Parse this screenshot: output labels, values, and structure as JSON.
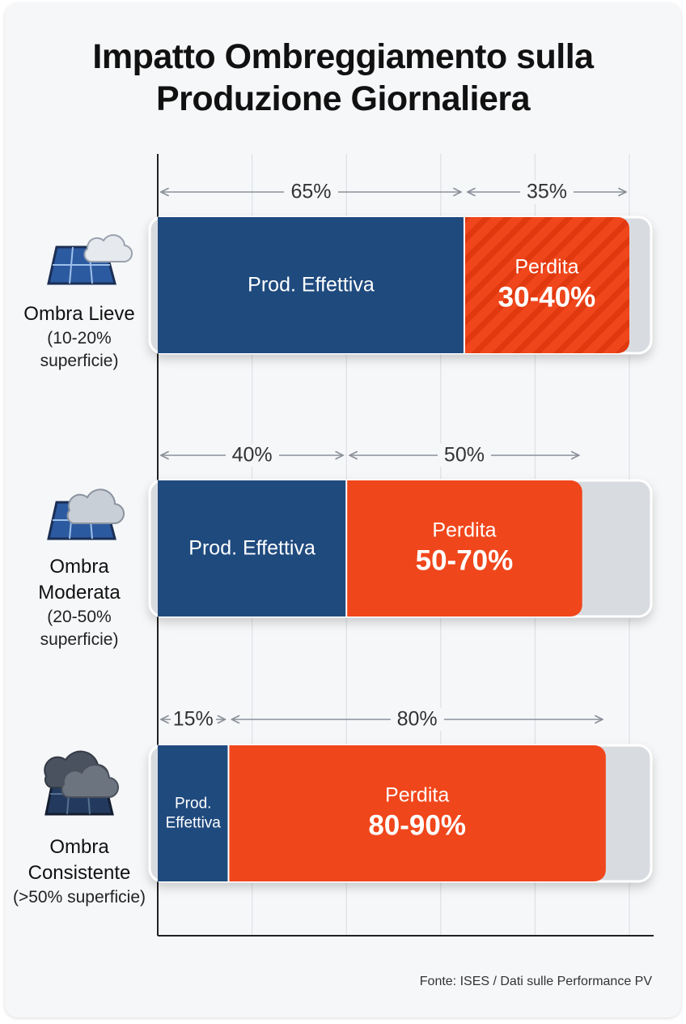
{
  "chart_data": {
    "type": "bar",
    "orientation": "horizontal",
    "stacked": true,
    "title": "Impatto Ombreggiamento sulla Produzione Giornaliera",
    "categories": [
      "Ombra Lieve",
      "Ombra Moderata",
      "Ombra Consistente"
    ],
    "category_notes": [
      "(10-20% superficie)",
      "(20-50% superficie)",
      "(>50% superficie)"
    ],
    "series": [
      {
        "name": "Prod. Effettiva",
        "color": "#1f4a7e",
        "values": [
          65,
          40,
          15
        ],
        "value_labels": [
          "65%",
          "40%",
          "15%"
        ]
      },
      {
        "name": "Perdita",
        "color": "#f0461b",
        "values": [
          35,
          50,
          80
        ],
        "value_labels": [
          "35%",
          "50%",
          "80%"
        ],
        "ranges": [
          "30-40%",
          "50-70%",
          "80-90%"
        ],
        "hatch": [
          true,
          false,
          false
        ]
      }
    ],
    "xlim": [
      0,
      100
    ],
    "xticks": [
      0,
      20,
      40,
      60,
      80,
      100
    ],
    "grid": true,
    "source": "Fonte: ISES / Dati sulle Performance PV"
  }
}
